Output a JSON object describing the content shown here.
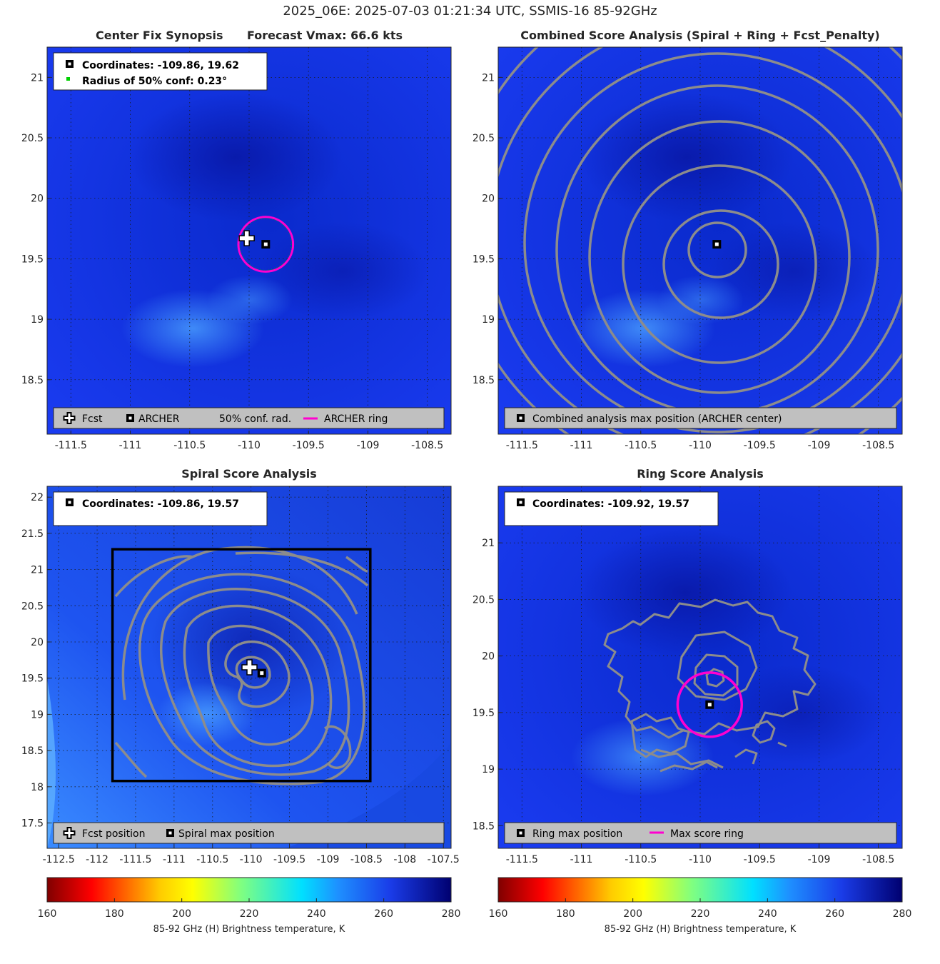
{
  "figure_title": "2025_06E: 2025-07-03 01:21:34 UTC, SSMIS-16 85-92GHz",
  "colors": {
    "ring": "#ff00d0",
    "contour": "#8c8c8c",
    "legend_bg": "#c0c0c0",
    "grid": "#1a1a1a"
  },
  "panels": [
    {
      "id": "tl",
      "title_left": "Center Fix Synopsis",
      "title_right": "Forecast Vmax: 66.6 kts",
      "info": [
        "Coordinates: -109.86, 19.62",
        "Radius of 50% conf: 0.23°"
      ],
      "legend": [
        "Fcst",
        "ARCHER",
        "50% conf. rad.",
        "ARCHER ring"
      ]
    },
    {
      "id": "tr",
      "title": "Combined Score Analysis (Spiral + Ring + Fcst_Penalty)",
      "legend": [
        "Combined analysis max position (ARCHER center)"
      ]
    },
    {
      "id": "bl",
      "title": "Spiral Score Analysis",
      "info": [
        "Coordinates: -109.86, 19.57"
      ],
      "legend": [
        "Fcst position",
        "Spiral max position"
      ]
    },
    {
      "id": "br",
      "title": "Ring Score Analysis",
      "info": [
        "Coordinates: -109.92, 19.57"
      ],
      "legend": [
        "Ring max position",
        "Max score ring"
      ]
    }
  ],
  "colorbar": {
    "ticks": [
      "160",
      "180",
      "200",
      "220",
      "240",
      "260",
      "280"
    ],
    "label": "85-92 GHz (H) Brightness temperature, K"
  },
  "chart_data": [
    {
      "type": "heatmap",
      "title": "Center Fix Synopsis    Forecast Vmax: 66.6 kts",
      "xlim": [
        -111.7,
        -108.3
      ],
      "ylim": [
        18.05,
        21.25
      ],
      "xticks": [
        "-111.5",
        "-111",
        "-110.5",
        "-110",
        "-109.5",
        "-109",
        "-108.5"
      ],
      "yticks": [
        "18.5",
        "19",
        "19.5",
        "20",
        "20.5",
        "21"
      ],
      "archer_center": [
        -109.86,
        19.62
      ],
      "forecast_position": [
        -110.02,
        19.67
      ],
      "conf_radius_deg": 0.23,
      "colorbar_range_K": [
        160,
        280
      ]
    },
    {
      "type": "heatmap",
      "title": "Combined Score Analysis (Spiral + Ring + Fcst_Penalty)",
      "xlim": [
        -111.7,
        -108.3
      ],
      "ylim": [
        18.05,
        21.25
      ],
      "xticks": [
        "-111.5",
        "-111",
        "-110.5",
        "-110",
        "-109.5",
        "-109",
        "-108.5"
      ],
      "yticks": [
        "18.5",
        "19",
        "19.5",
        "20",
        "20.5",
        "21"
      ],
      "max_position": [
        -109.86,
        19.62
      ]
    },
    {
      "type": "heatmap",
      "title": "Spiral Score Analysis",
      "xlim": [
        -112.65,
        -107.4
      ],
      "ylim": [
        17.15,
        22.15
      ],
      "xticks": [
        "-112.5",
        "-112",
        "-111.5",
        "-111",
        "-110.5",
        "-110",
        "-109.5",
        "-109",
        "-108.5",
        "-108",
        "-107.5"
      ],
      "yticks": [
        "17.5",
        "18",
        "18.5",
        "19",
        "19.5",
        "20",
        "20.5",
        "21",
        "21.5",
        "22"
      ],
      "spiral_max_position": [
        -109.86,
        19.57
      ],
      "forecast_position": [
        -110.02,
        19.65
      ],
      "search_box": {
        "lon": [
          -111.8,
          -108.45
        ],
        "lat": [
          18.08,
          21.28
        ]
      }
    },
    {
      "type": "heatmap",
      "title": "Ring Score Analysis",
      "xlim": [
        -111.7,
        -108.3
      ],
      "ylim": [
        18.3,
        21.5
      ],
      "xticks": [
        "-111.5",
        "-111",
        "-110.5",
        "-110",
        "-109.5",
        "-109",
        "-108.5"
      ],
      "yticks": [
        "18.5",
        "19",
        "19.5",
        "20",
        "20.5",
        "21"
      ],
      "ring_max_position": [
        -109.92,
        19.57
      ],
      "max_score_ring_radius_deg": 0.27
    }
  ]
}
